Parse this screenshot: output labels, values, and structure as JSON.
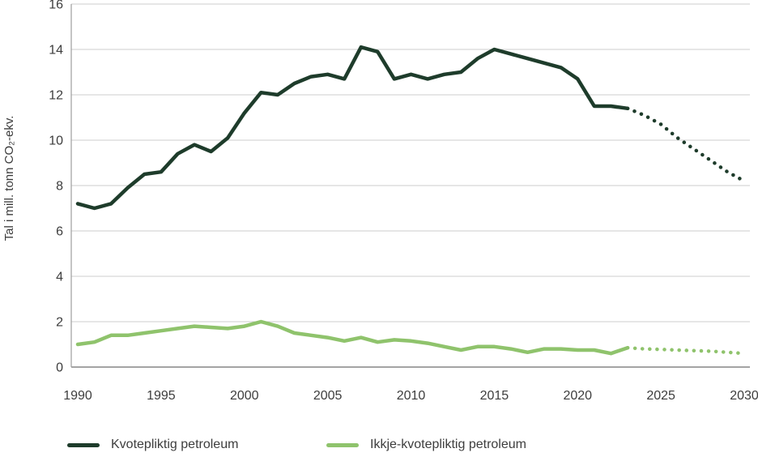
{
  "chart_data": {
    "type": "line",
    "title": "",
    "xlabel": "",
    "ylabel": "Tal i mill. tonn CO₂-ekv.",
    "x_range": [
      1990,
      2030
    ],
    "x_step": 1,
    "ylim": [
      0,
      16
    ],
    "yticks": [
      0,
      2,
      4,
      6,
      8,
      10,
      12,
      14,
      16
    ],
    "xticks": [
      1990,
      1995,
      2000,
      2005,
      2010,
      2015,
      2020,
      2025,
      2030
    ],
    "grid": "horizontal",
    "legend_position": "bottom",
    "projection_start_year": 2023,
    "projection_style": "dotted",
    "series": [
      {
        "name": "Kvotepliktig petroleum",
        "color": "#1E3C2B",
        "values": [
          7.2,
          7.0,
          7.2,
          7.9,
          8.5,
          8.6,
          9.4,
          9.8,
          9.5,
          10.1,
          11.2,
          12.1,
          12.0,
          12.5,
          12.8,
          12.9,
          12.7,
          14.1,
          13.9,
          12.7,
          12.9,
          12.7,
          12.9,
          13.0,
          13.6,
          14.0,
          13.8,
          13.6,
          13.4,
          13.2,
          12.7,
          11.5,
          11.5,
          11.4,
          11.1,
          10.7,
          10.1,
          9.6,
          9.1,
          8.6,
          8.2
        ]
      },
      {
        "name": "Ikkje-kvotepliktig petroleum",
        "color": "#8FC36C",
        "values": [
          1.0,
          1.1,
          1.4,
          1.4,
          1.5,
          1.6,
          1.7,
          1.8,
          1.75,
          1.7,
          1.8,
          2.0,
          1.8,
          1.5,
          1.4,
          1.3,
          1.15,
          1.3,
          1.1,
          1.2,
          1.15,
          1.05,
          0.9,
          0.75,
          0.9,
          0.9,
          0.8,
          0.65,
          0.8,
          0.8,
          0.75,
          0.75,
          0.6,
          0.85,
          0.8,
          0.78,
          0.75,
          0.72,
          0.7,
          0.65,
          0.6
        ]
      }
    ],
    "axis_colors": {
      "gridline": "#cccccc",
      "axis_line": "#a4a4a4",
      "tick_text": "#3d3d3d"
    }
  }
}
